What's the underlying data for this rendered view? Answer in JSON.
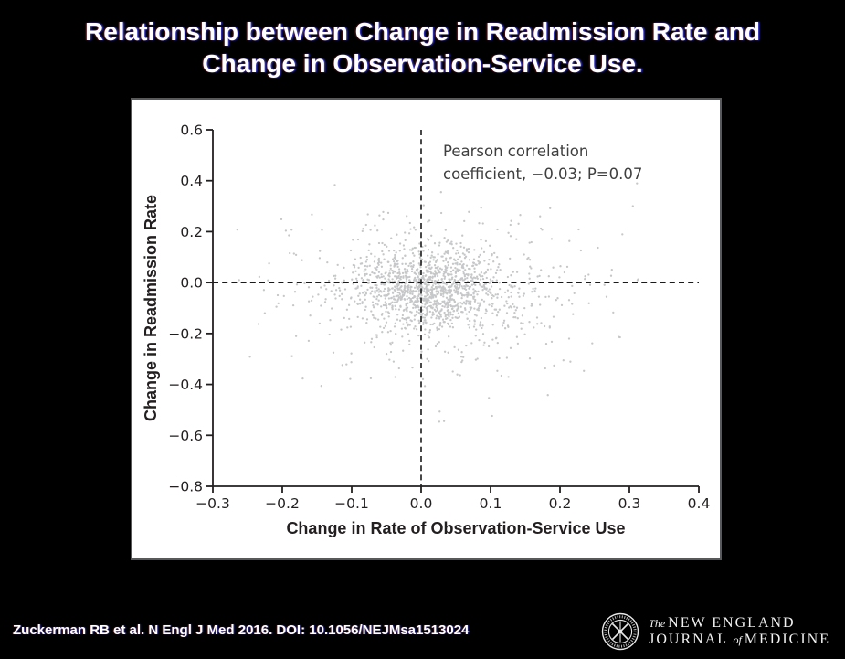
{
  "slide": {
    "title": {
      "line1": "Relationship between Change in Readmission Rate and",
      "line2": "Change in Observation-Service Use."
    },
    "footer": {
      "citation": "Zuckerman RB et al. N Engl J Med 2016. DOI: 10.1056/NEJMsa1513024"
    },
    "logo": {
      "line1_prefix": "The",
      "line1_text": "NEW ENGLAND",
      "line2_word1": "JOURNAL",
      "line2_prefix": "of",
      "line2_word2": "MEDICINE"
    }
  },
  "chart_data": {
    "type": "scatter",
    "title": "",
    "xlabel": "Change in Rate of Observation-Service Use",
    "ylabel": "Change in Readmission Rate",
    "xlim": [
      -0.3,
      0.4
    ],
    "ylim": [
      -0.8,
      0.6
    ],
    "x_tick_values": [
      -0.3,
      -0.2,
      -0.1,
      0.0,
      0.1,
      0.2,
      0.3,
      0.4
    ],
    "x_tick_labels": [
      "−0.3",
      "−0.2",
      "−0.1",
      "0.0",
      "0.1",
      "0.2",
      "0.3",
      "0.4"
    ],
    "y_tick_values": [
      0.6,
      0.4,
      0.2,
      0.0,
      -0.2,
      -0.4,
      -0.6,
      -0.8
    ],
    "y_tick_labels": [
      "0.6",
      "0.4",
      "0.2",
      "0.0",
      "−0.2",
      "−0.4",
      "−0.6",
      "−0.8"
    ],
    "grid": false,
    "legend": "none",
    "annotation": {
      "line1": "Pearson correlation",
      "line2": "coefficient, −0.03; P=0.07"
    },
    "stats": {
      "pearson_correlation_coefficient": -0.03,
      "p_value": 0.07
    },
    "reference_lines": {
      "vertical_at_x": 0.0,
      "horizontal_at_y": 0.0,
      "style": "dashed"
    },
    "points": {
      "n": 1600,
      "seed": 7,
      "distribution": "gaussian_mixture",
      "components": [
        {
          "weight": 0.6,
          "cx": 0.012,
          "cy": -0.022,
          "sx": 0.048,
          "sy": 0.072
        },
        {
          "weight": 0.4,
          "cx": 0.015,
          "cy": -0.04,
          "sx": 0.115,
          "sy": 0.16
        }
      ],
      "clip_x": [
        -0.27,
        0.325
      ],
      "clip_y": [
        -0.555,
        0.435
      ],
      "marker": "dot",
      "marker_radius_px": 1.15
    }
  },
  "colors": {
    "background": "#000000",
    "title_text": "#ffffff",
    "panel_bg": "#ffffff",
    "panel_border": "#58595b",
    "axis": "#231f20",
    "tick_label": "#231f20",
    "axis_title": "#231f20",
    "annotation_text": "#3f3f3f",
    "point": "#c6c7c9",
    "dashed_line": "#1a1a1a",
    "footer_text": "#ffffff",
    "logo_text": "#f2f2f2"
  }
}
